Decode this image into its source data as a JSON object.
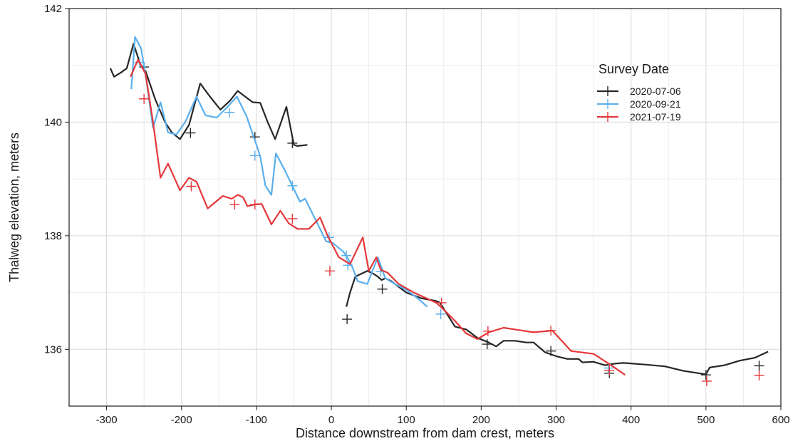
{
  "chart_data": {
    "type": "line",
    "title": "",
    "xlabel": "Distance downstream from dam crest, meters",
    "ylabel": "Thalweg elevation, meters",
    "xlim": [
      -350,
      600
    ],
    "ylim": [
      135,
      142
    ],
    "xticks": [
      -300,
      -200,
      -100,
      0,
      100,
      200,
      300,
      400,
      500,
      600
    ],
    "yticks": [
      136,
      138,
      140,
      142
    ],
    "x_tick_labels": [
      "-300",
      "-200",
      "-100",
      "0",
      "100",
      "200",
      "300",
      "400",
      "500",
      "600"
    ],
    "y_tick_labels": [
      "136",
      "138",
      "140",
      "142"
    ],
    "grid": true,
    "legend": {
      "title": "Survey Date",
      "placement": "top-right"
    },
    "series": [
      {
        "name": "2020-07-06",
        "color": "#262626",
        "segments": [
          [
            [
              -295,
              140.95
            ],
            [
              -290,
              140.8
            ],
            [
              -280,
              140.88
            ],
            [
              -273,
              140.95
            ],
            [
              -264,
              141.38
            ],
            [
              -255,
              141.02
            ],
            [
              -248,
              140.9
            ],
            [
              -235,
              140.4
            ],
            [
              -222,
              140.0
            ],
            [
              -213,
              139.82
            ],
            [
              -202,
              139.7
            ],
            [
              -190,
              139.95
            ],
            [
              -175,
              140.68
            ],
            [
              -162,
              140.45
            ],
            [
              -148,
              140.22
            ],
            [
              -135,
              140.38
            ],
            [
              -125,
              140.55
            ],
            [
              -115,
              140.45
            ],
            [
              -105,
              140.35
            ],
            [
              -95,
              140.34
            ],
            [
              -85,
              140.0
            ],
            [
              -75,
              139.7
            ],
            [
              -60,
              140.27
            ],
            [
              -50,
              139.6
            ],
            [
              -45,
              139.58
            ],
            [
              -32,
              139.6
            ]
          ],
          [
            [
              20,
              136.75
            ],
            [
              25,
              137.0
            ],
            [
              32,
              137.28
            ],
            [
              40,
              137.33
            ],
            [
              48,
              137.38
            ],
            [
              55,
              137.34
            ],
            [
              62,
              137.28
            ],
            [
              67,
              137.22
            ],
            [
              72,
              137.25
            ],
            [
              80,
              137.2
            ],
            [
              100,
              137.0
            ],
            [
              120,
              136.9
            ],
            [
              140,
              136.85
            ],
            [
              145,
              136.82
            ],
            [
              165,
              136.4
            ],
            [
              180,
              136.35
            ],
            [
              195,
              136.2
            ],
            [
              210,
              136.12
            ],
            [
              220,
              136.05
            ],
            [
              230,
              136.15
            ],
            [
              245,
              136.15
            ],
            [
              260,
              136.12
            ],
            [
              270,
              136.12
            ],
            [
              285,
              135.95
            ],
            [
              300,
              135.88
            ],
            [
              315,
              135.83
            ],
            [
              330,
              135.83
            ],
            [
              335,
              135.77
            ],
            [
              350,
              135.78
            ],
            [
              365,
              135.72
            ],
            [
              380,
              135.75
            ],
            [
              390,
              135.76
            ],
            [
              420,
              135.73
            ],
            [
              445,
              135.7
            ],
            [
              470,
              135.62
            ],
            [
              500,
              135.56
            ],
            [
              505,
              135.68
            ],
            [
              525,
              135.72
            ],
            [
              545,
              135.8
            ],
            [
              565,
              135.85
            ],
            [
              583,
              135.96
            ]
          ]
        ],
        "markers": [
          [
            -250,
            140.97
          ],
          [
            -188,
            139.81
          ],
          [
            -102,
            139.74
          ],
          [
            -52,
            139.63
          ],
          [
            21,
            136.53
          ],
          [
            68,
            137.06
          ],
          [
            208,
            136.09
          ],
          [
            293,
            135.97
          ],
          [
            371,
            135.58
          ],
          [
            500,
            135.55
          ],
          [
            571,
            135.71
          ]
        ]
      },
      {
        "name": "2020-09-21",
        "color": "#5aafed",
        "segments": [
          [
            [
              -267,
              140.58
            ],
            [
              -262,
              141.5
            ],
            [
              -254,
              141.3
            ],
            [
              -247,
              140.75
            ],
            [
              -238,
              139.9
            ],
            [
              -228,
              140.35
            ],
            [
              -218,
              139.82
            ],
            [
              -207,
              139.78
            ],
            [
              -195,
              140.0
            ],
            [
              -180,
              140.45
            ],
            [
              -168,
              140.12
            ],
            [
              -153,
              140.08
            ],
            [
              -140,
              140.25
            ],
            [
              -126,
              140.45
            ],
            [
              -113,
              140.1
            ],
            [
              -100,
              139.6
            ],
            [
              -95,
              139.4
            ],
            [
              -88,
              138.88
            ],
            [
              -80,
              138.72
            ],
            [
              -74,
              139.45
            ],
            [
              -62,
              139.15
            ],
            [
              -50,
              138.82
            ],
            [
              -42,
              138.6
            ],
            [
              -35,
              138.65
            ],
            [
              -18,
              138.2
            ],
            [
              -7,
              137.9
            ],
            [
              2,
              137.87
            ],
            [
              16,
              137.72
            ],
            [
              22,
              137.6
            ],
            [
              28,
              137.45
            ],
            [
              35,
              137.2
            ],
            [
              48,
              137.15
            ],
            [
              62,
              137.62
            ],
            [
              72,
              137.25
            ],
            [
              85,
              137.15
            ],
            [
              100,
              137.05
            ],
            [
              115,
              136.9
            ],
            [
              128,
              136.75
            ]
          ]
        ],
        "markers": [
          [
            -256,
            141.05
          ],
          [
            -136,
            140.17
          ],
          [
            -102,
            139.41
          ],
          [
            -52,
            138.88
          ],
          [
            -3,
            137.97
          ],
          [
            20,
            137.65
          ],
          [
            22,
            137.48
          ],
          [
            66,
            137.37
          ],
          [
            146,
            136.62
          ],
          [
            370,
            135.67
          ]
        ]
      },
      {
        "name": "2021-07-19",
        "color": "#e5373a",
        "segments": [
          [
            [
              -268,
              140.8
            ],
            [
              -258,
              141.1
            ],
            [
              -248,
              140.85
            ],
            [
              -238,
              140.0
            ],
            [
              -228,
              139.02
            ],
            [
              -218,
              139.27
            ],
            [
              -202,
              138.8
            ],
            [
              -190,
              139.02
            ],
            [
              -180,
              138.95
            ],
            [
              -165,
              138.48
            ],
            [
              -145,
              138.7
            ],
            [
              -133,
              138.65
            ],
            [
              -125,
              138.72
            ],
            [
              -118,
              138.68
            ],
            [
              -112,
              138.52
            ],
            [
              -103,
              138.55
            ],
            [
              -93,
              138.56
            ],
            [
              -80,
              138.2
            ],
            [
              -68,
              138.44
            ],
            [
              -57,
              138.22
            ],
            [
              -45,
              138.12
            ],
            [
              -30,
              138.12
            ],
            [
              -15,
              138.32
            ],
            [
              -5,
              138.0
            ],
            [
              10,
              137.62
            ],
            [
              25,
              137.5
            ],
            [
              42,
              137.97
            ],
            [
              50,
              137.38
            ],
            [
              60,
              137.62
            ],
            [
              66,
              137.4
            ],
            [
              75,
              137.35
            ],
            [
              90,
              137.15
            ],
            [
              110,
              137.0
            ],
            [
              130,
              136.88
            ],
            [
              140,
              136.82
            ],
            [
              150,
              136.7
            ],
            [
              165,
              136.5
            ],
            [
              180,
              136.28
            ],
            [
              195,
              136.18
            ],
            [
              210,
              136.3
            ],
            [
              230,
              136.38
            ],
            [
              250,
              136.34
            ],
            [
              270,
              136.3
            ],
            [
              295,
              136.33
            ],
            [
              320,
              135.97
            ],
            [
              350,
              135.92
            ],
            [
              370,
              135.75
            ],
            [
              392,
              135.55
            ]
          ]
        ],
        "markers": [
          [
            -250,
            140.41
          ],
          [
            -187,
            138.87
          ],
          [
            -129,
            138.55
          ],
          [
            -102,
            138.55
          ],
          [
            -52,
            138.3
          ],
          [
            -2,
            137.38
          ],
          [
            147,
            136.82
          ],
          [
            209,
            136.32
          ],
          [
            293,
            136.33
          ],
          [
            371,
            135.63
          ],
          [
            501,
            135.44
          ],
          [
            571,
            135.54
          ]
        ]
      }
    ]
  }
}
